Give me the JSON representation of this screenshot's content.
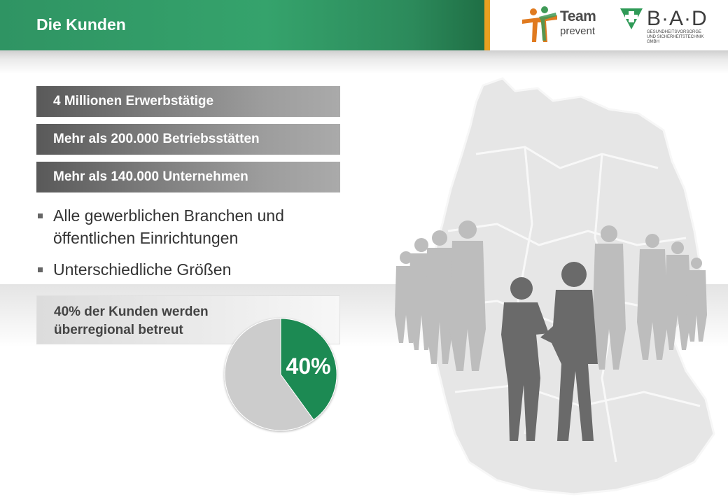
{
  "header": {
    "title": "Die Kunden",
    "logo_team_word": "Team",
    "logo_team_sub": "prevent",
    "logo_bad_word": "B·A·D",
    "logo_bad_sub": "GESUNDHEITSVORSORGE UND SICHERHEITSTECHNIK GMBH"
  },
  "facts": [
    "4 Millionen Erwerbstätige",
    "Mehr als 200.000 Betriebsstätten",
    "Mehr als 140.000 Unternehmen"
  ],
  "bullets": [
    "Alle gewerblichen Branchen und öffentlichen Einrichtungen",
    "Unterschiedliche Größen"
  ],
  "kunden": {
    "text": "40% der Kunden werden überregional betreut"
  },
  "chart_data": {
    "type": "pie",
    "slices": [
      {
        "value": 40,
        "label": "40%",
        "color": "#1f8a52"
      },
      {
        "value": 60,
        "label": "",
        "color": "#cccccc"
      }
    ]
  },
  "colors": {
    "brand_green": "#35a36c",
    "accent_orange": "#e8a020",
    "map_gray": "#e6e6e6",
    "people_light": "#bdbdbd",
    "people_dark": "#6a6a6a"
  }
}
